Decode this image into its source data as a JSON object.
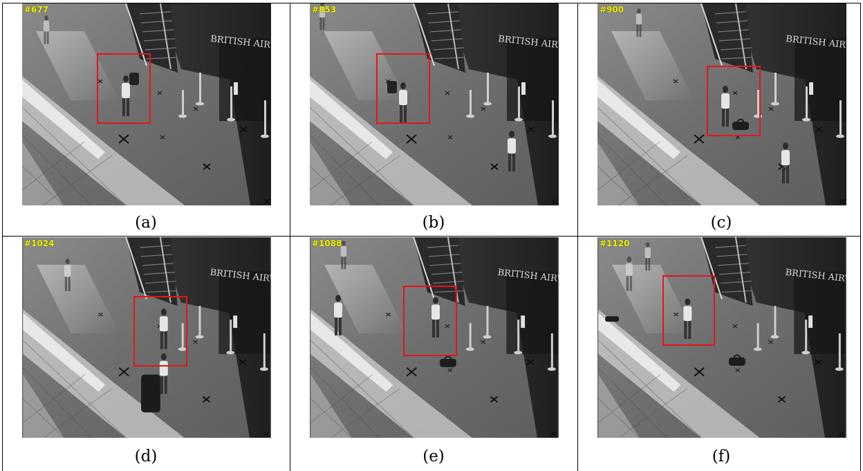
{
  "figure": {
    "panels": [
      {
        "frame_id": "#677",
        "caption": "(a)"
      },
      {
        "frame_id": "#853",
        "caption": "(b)"
      },
      {
        "frame_id": "#900",
        "caption": "(c)"
      },
      {
        "frame_id": "#1024",
        "caption": "(d)"
      },
      {
        "frame_id": "#1088",
        "caption": "(e)"
      },
      {
        "frame_id": "#1120",
        "caption": "(f)"
      }
    ],
    "sign_text": "BRITISH AIRWAYS",
    "colors": {
      "tracking_box": "#e8141a",
      "frame_id_text": "#f2f200",
      "grid": "#000000"
    }
  }
}
